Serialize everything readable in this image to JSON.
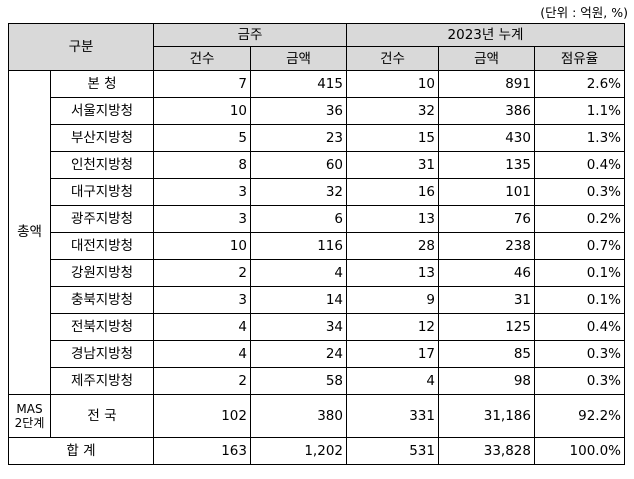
{
  "unit_note": "(단위 : 억원, %)",
  "header": {
    "category": "구분",
    "group_current": "금주",
    "group_cumulative": "2023년 누계",
    "cols": [
      "건수",
      "금액",
      "건수",
      "금액",
      "점유율"
    ]
  },
  "group_label": "총액",
  "mas_label_line1": "MAS",
  "mas_label_line2": "2단계",
  "rows": [
    {
      "name": "본    청",
      "c1": "7",
      "c2": "415",
      "c3": "10",
      "c4": "891",
      "c5": "2.6%"
    },
    {
      "name": "서울지방청",
      "c1": "10",
      "c2": "36",
      "c3": "32",
      "c4": "386",
      "c5": "1.1%"
    },
    {
      "name": "부산지방청",
      "c1": "5",
      "c2": "23",
      "c3": "15",
      "c4": "430",
      "c5": "1.3%"
    },
    {
      "name": "인천지방청",
      "c1": "8",
      "c2": "60",
      "c3": "31",
      "c4": "135",
      "c5": "0.4%"
    },
    {
      "name": "대구지방청",
      "c1": "3",
      "c2": "32",
      "c3": "16",
      "c4": "101",
      "c5": "0.3%"
    },
    {
      "name": "광주지방청",
      "c1": "3",
      "c2": "6",
      "c3": "13",
      "c4": "76",
      "c5": "0.2%"
    },
    {
      "name": "대전지방청",
      "c1": "10",
      "c2": "116",
      "c3": "28",
      "c4": "238",
      "c5": "0.7%"
    },
    {
      "name": "강원지방청",
      "c1": "2",
      "c2": "4",
      "c3": "13",
      "c4": "46",
      "c5": "0.1%"
    },
    {
      "name": "충북지방청",
      "c1": "3",
      "c2": "14",
      "c3": "9",
      "c4": "31",
      "c5": "0.1%"
    },
    {
      "name": "전북지방청",
      "c1": "4",
      "c2": "34",
      "c3": "12",
      "c4": "125",
      "c5": "0.4%"
    },
    {
      "name": "경남지방청",
      "c1": "4",
      "c2": "24",
      "c3": "17",
      "c4": "85",
      "c5": "0.3%"
    },
    {
      "name": "제주지방청",
      "c1": "2",
      "c2": "58",
      "c3": "4",
      "c4": "98",
      "c5": "0.3%"
    }
  ],
  "mas_row": {
    "name": "전    국",
    "c1": "102",
    "c2": "380",
    "c3": "331",
    "c4": "31,186",
    "c5": "92.2%"
  },
  "total_row": {
    "name": "합    계",
    "c1": "163",
    "c2": "1,202",
    "c3": "531",
    "c4": "33,828",
    "c5": "100.0%"
  }
}
